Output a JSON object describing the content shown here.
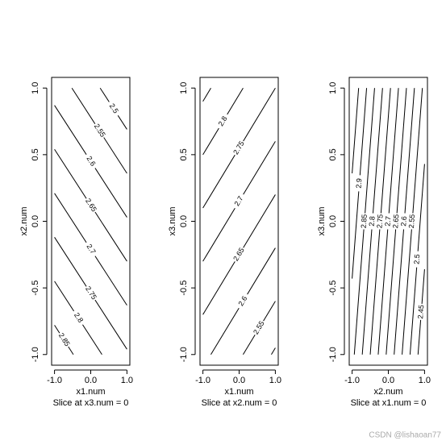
{
  "chart_data": [
    {
      "type": "contour",
      "xlabel": "x1.num",
      "ylabel": "x2.num",
      "subtitle": "Slice at x3.num = 0",
      "xlim": [
        -1.08,
        1.08
      ],
      "ylim": [
        -1.08,
        1.08
      ],
      "xticks": [
        {
          "value": -1,
          "label": "-1.0"
        },
        {
          "value": 0,
          "label": "0.0"
        },
        {
          "value": 1,
          "label": "1.0"
        }
      ],
      "yticks": [
        {
          "value": -1,
          "label": "-1.0"
        },
        {
          "value": -0.5,
          "label": "-0.5"
        },
        {
          "value": 0,
          "label": "0.0"
        },
        {
          "value": 0.5,
          "label": "0.5"
        },
        {
          "value": 1,
          "label": "1.0"
        }
      ],
      "color": "#000000",
      "contours": [
        {
          "level": 2.5,
          "x": [
            0.26,
            1
          ],
          "y": [
            1,
            0.69
          ]
        },
        {
          "level": 2.55,
          "x": [
            -0.52,
            1
          ],
          "y": [
            1,
            0.36
          ]
        },
        {
          "level": 2.6,
          "x": [
            -1,
            1
          ],
          "y": [
            0.87,
            0.03
          ]
        },
        {
          "level": 2.65,
          "x": [
            -1,
            1
          ],
          "y": [
            0.54,
            -0.3
          ]
        },
        {
          "level": 2.7,
          "x": [
            -1,
            1
          ],
          "y": [
            0.21,
            -0.63
          ]
        },
        {
          "level": 2.75,
          "x": [
            -1,
            1
          ],
          "y": [
            -0.12,
            -0.96
          ]
        },
        {
          "level": 2.8,
          "x": [
            -1,
            0.31
          ],
          "y": [
            -0.45,
            -1
          ]
        },
        {
          "level": 2.85,
          "x": [
            -1,
            -0.48
          ],
          "y": [
            -0.78,
            -1
          ]
        }
      ]
    },
    {
      "type": "contour",
      "xlabel": "x1.num",
      "ylabel": "x3.num",
      "subtitle": "Slice at x2.num = 0",
      "xlim": [
        -1.08,
        1.08
      ],
      "ylim": [
        -1.08,
        1.08
      ],
      "xticks": [
        {
          "value": -1,
          "label": "-1.0"
        },
        {
          "value": 0,
          "label": "0.0"
        },
        {
          "value": 1,
          "label": "1.0"
        }
      ],
      "yticks": [
        {
          "value": -1,
          "label": "-1.0"
        },
        {
          "value": -0.5,
          "label": "-0.5"
        },
        {
          "value": 0,
          "label": "0.0"
        },
        {
          "value": 0.5,
          "label": "0.5"
        },
        {
          "value": 1,
          "label": "1.0"
        }
      ],
      "color": "#000000",
      "contours": [
        {
          "x": [
            -1,
            -0.78
          ],
          "y": [
            0.9,
            1
          ]
        },
        {
          "level": 2.8,
          "x": [
            -1,
            0.11
          ],
          "y": [
            0.5,
            1
          ]
        },
        {
          "level": 2.75,
          "x": [
            -1,
            1
          ],
          "y": [
            0.1,
            1
          ]
        },
        {
          "level": 2.7,
          "x": [
            -1,
            1
          ],
          "y": [
            -0.3,
            0.6
          ]
        },
        {
          "level": 2.65,
          "x": [
            -1,
            1
          ],
          "y": [
            -0.7,
            0.2
          ]
        },
        {
          "level": 2.6,
          "x": [
            -0.78,
            1
          ],
          "y": [
            -1,
            -0.2
          ]
        },
        {
          "level": 2.55,
          "x": [
            0.11,
            1
          ],
          "y": [
            -1,
            -0.6
          ]
        },
        {
          "x": [
            0.89,
            1
          ],
          "y": [
            -1,
            -0.95
          ]
        }
      ]
    },
    {
      "type": "contour",
      "xlabel": "x2.num",
      "ylabel": "x3.num",
      "subtitle": "Slice at x1.num = 0",
      "xlim": [
        -1.08,
        1.08
      ],
      "ylim": [
        -1.08,
        1.08
      ],
      "xticks": [
        {
          "value": -1,
          "label": "-1.0"
        },
        {
          "value": 0,
          "label": "0.0"
        },
        {
          "value": 1,
          "label": "1.0"
        }
      ],
      "yticks": [
        {
          "value": -1,
          "label": "-1.0"
        },
        {
          "value": -0.5,
          "label": "-0.5"
        },
        {
          "value": 0,
          "label": "0.0"
        },
        {
          "value": 0.5,
          "label": "0.5"
        },
        {
          "value": 1,
          "label": "1.0"
        }
      ],
      "color": "#000000",
      "contours": [
        {
          "x": [
            -1,
            -0.82
          ],
          "y": [
            0.36,
            1
          ]
        },
        {
          "level": 2.9,
          "x": [
            -1,
            -0.6
          ],
          "y": [
            -0.43,
            1
          ]
        },
        {
          "level": 2.85,
          "x": [
            -0.94,
            -0.38
          ],
          "y": [
            -1,
            1
          ]
        },
        {
          "level": 2.8,
          "x": [
            -0.72,
            -0.16
          ],
          "y": [
            -1,
            1
          ]
        },
        {
          "level": 2.75,
          "x": [
            -0.5,
            0.06
          ],
          "y": [
            -1,
            1
          ]
        },
        {
          "level": 2.7,
          "x": [
            -0.28,
            0.28
          ],
          "y": [
            -1,
            1
          ]
        },
        {
          "level": 2.65,
          "x": [
            -0.06,
            0.5
          ],
          "y": [
            -1,
            1
          ]
        },
        {
          "level": 2.6,
          "x": [
            0.16,
            0.72
          ],
          "y": [
            -1,
            1
          ]
        },
        {
          "level": 2.55,
          "x": [
            0.38,
            0.94
          ],
          "y": [
            -1,
            1
          ]
        },
        {
          "level": 2.5,
          "x": [
            0.6,
            1
          ],
          "y": [
            -1,
            0.43
          ]
        },
        {
          "level": 2.45,
          "x": [
            0.82,
            1
          ],
          "y": [
            -1,
            -0.36
          ]
        }
      ]
    }
  ],
  "watermark": "CSDN @lishaoan77"
}
